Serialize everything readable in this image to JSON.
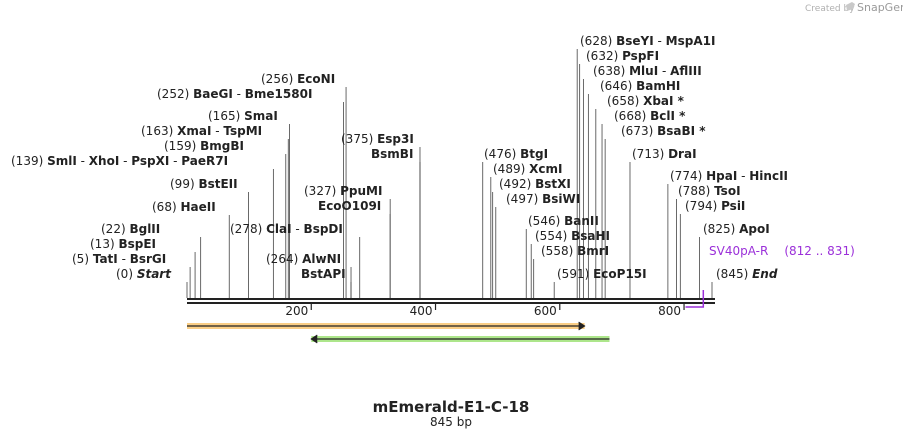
{
  "branding": {
    "created_by": "Created by",
    "app": "SnapGene"
  },
  "sequence": {
    "name": "mEmerald-E1-C-18",
    "length_label": "845 bp",
    "length": 845
  },
  "axis": {
    "ticks": [
      {
        "value": 200,
        "label": "200"
      },
      {
        "value": 400,
        "label": "400"
      },
      {
        "value": 600,
        "label": "600"
      },
      {
        "value": 800,
        "label": "800"
      }
    ]
  },
  "sites": [
    {
      "pos": 0,
      "pos_label": "(0)",
      "parts": [
        "Start"
      ],
      "italic": true
    },
    {
      "pos": 5,
      "pos_label": "(5)",
      "parts": [
        "TatI",
        "BsrGI"
      ]
    },
    {
      "pos": 13,
      "pos_label": "(13)",
      "parts": [
        "BspEI"
      ]
    },
    {
      "pos": 22,
      "pos_label": "(22)",
      "parts": [
        "BglII"
      ]
    },
    {
      "pos": 68,
      "pos_label": "(68)",
      "parts": [
        "HaeII"
      ]
    },
    {
      "pos": 99,
      "pos_label": "(99)",
      "parts": [
        "BstEII"
      ]
    },
    {
      "pos": 139,
      "pos_label": "(139)",
      "parts": [
        "SmlI",
        "XhoI",
        "PspXI",
        "PaeR7I"
      ]
    },
    {
      "pos": 159,
      "pos_label": "(159)",
      "parts": [
        "BmgBI"
      ]
    },
    {
      "pos": 163,
      "pos_label": "(163)",
      "parts": [
        "XmaI",
        "TspMI"
      ]
    },
    {
      "pos": 165,
      "pos_label": "(165)",
      "parts": [
        "SmaI"
      ]
    },
    {
      "pos": 252,
      "pos_label": "(252)",
      "parts": [
        "BaeGI",
        "Bme1580I"
      ]
    },
    {
      "pos": 256,
      "pos_label": "(256)",
      "parts": [
        "EcoNI"
      ]
    },
    {
      "pos": 278,
      "pos_label": "(278)",
      "parts": [
        "ClaI",
        "BspDI"
      ]
    },
    {
      "pos": 264,
      "pos_label": "(264)",
      "parts": [
        "AlwNI"
      ]
    },
    {
      "pos": 264,
      "pos_label": "",
      "parts": [
        "BstAPI"
      ]
    },
    {
      "pos": 327,
      "pos_label": "(327)",
      "parts": [
        "PpuMI"
      ]
    },
    {
      "pos": 327,
      "pos_label": "",
      "parts": [
        "EcoO109I"
      ]
    },
    {
      "pos": 375,
      "pos_label": "(375)",
      "parts": [
        "Esp3I"
      ]
    },
    {
      "pos": 375,
      "pos_label": "",
      "parts": [
        "BsmBI"
      ]
    },
    {
      "pos": 476,
      "pos_label": "(476)",
      "parts": [
        "BtgI"
      ]
    },
    {
      "pos": 489,
      "pos_label": "(489)",
      "parts": [
        "XcmI"
      ]
    },
    {
      "pos": 492,
      "pos_label": "(492)",
      "parts": [
        "BstXI"
      ]
    },
    {
      "pos": 497,
      "pos_label": "(497)",
      "parts": [
        "BsiWI"
      ]
    },
    {
      "pos": 546,
      "pos_label": "(546)",
      "parts": [
        "BanII"
      ]
    },
    {
      "pos": 554,
      "pos_label": "(554)",
      "parts": [
        "BsaHI"
      ]
    },
    {
      "pos": 558,
      "pos_label": "(558)",
      "parts": [
        "BmrI"
      ]
    },
    {
      "pos": 591,
      "pos_label": "(591)",
      "parts": [
        "EcoP15I"
      ]
    },
    {
      "pos": 628,
      "pos_label": "(628)",
      "parts": [
        "BseYI",
        "MspA1I"
      ]
    },
    {
      "pos": 632,
      "pos_label": "(632)",
      "parts": [
        "PspFI"
      ]
    },
    {
      "pos": 638,
      "pos_label": "(638)",
      "parts": [
        "MluI",
        "AflIII"
      ]
    },
    {
      "pos": 646,
      "pos_label": "(646)",
      "parts": [
        "BamHI"
      ]
    },
    {
      "pos": 658,
      "pos_label": "(658)",
      "parts": [
        "XbaI *"
      ]
    },
    {
      "pos": 668,
      "pos_label": "(668)",
      "parts": [
        "BclI *"
      ]
    },
    {
      "pos": 673,
      "pos_label": "(673)",
      "parts": [
        "BsaBI *"
      ]
    },
    {
      "pos": 713,
      "pos_label": "(713)",
      "parts": [
        "DraI"
      ]
    },
    {
      "pos": 774,
      "pos_label": "(774)",
      "parts": [
        "HpaI",
        "HincII"
      ]
    },
    {
      "pos": 788,
      "pos_label": "(788)",
      "parts": [
        "TsoI"
      ]
    },
    {
      "pos": 794,
      "pos_label": "(794)",
      "parts": [
        "PsiI"
      ]
    },
    {
      "pos": 825,
      "pos_label": "(825)",
      "parts": [
        "ApoI"
      ]
    },
    {
      "pos": 845,
      "pos_label": "(845)",
      "parts": [
        "End"
      ],
      "italic": true
    }
  ],
  "features": [
    {
      "name": "SV40pA-R",
      "range_label": "(812 .. 831)",
      "start": 812,
      "end": 831,
      "color": "#9b30d9"
    },
    {
      "name": "orange-orf",
      "start": 0,
      "end": 640,
      "color": "#f5a623",
      "direction": "forward"
    },
    {
      "name": "green-orf",
      "start": 200,
      "end": 680,
      "color": "#6ad12b",
      "direction": "reverse"
    }
  ]
}
